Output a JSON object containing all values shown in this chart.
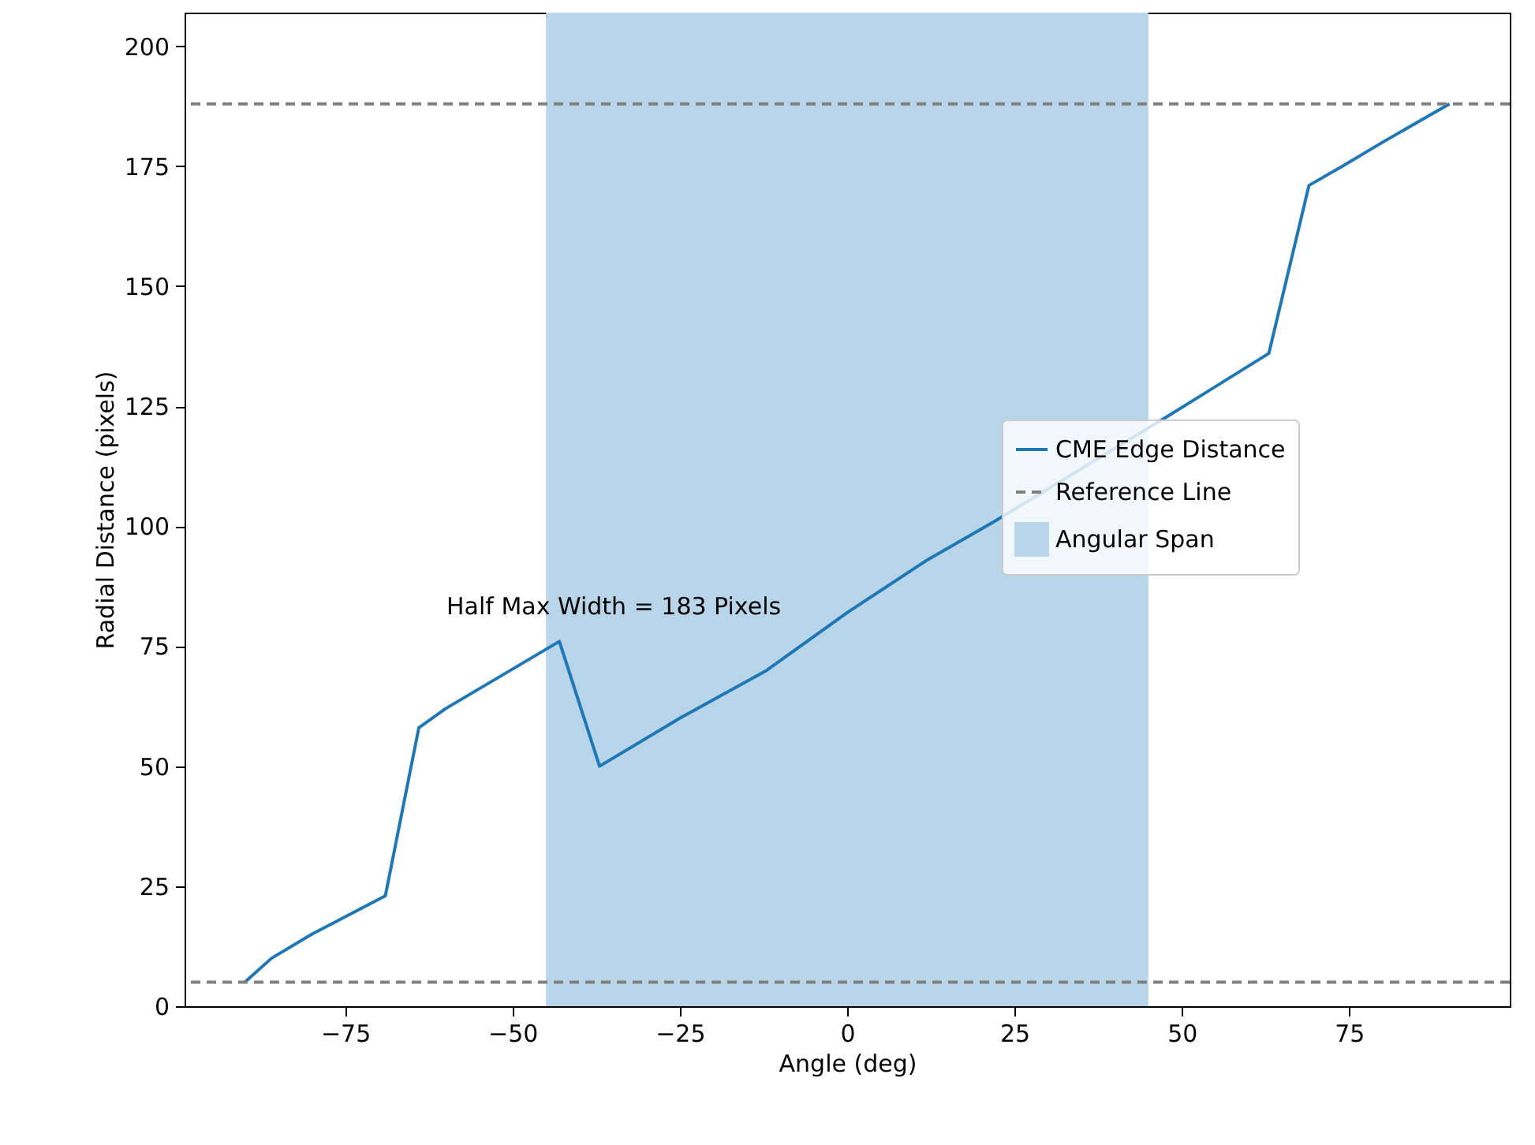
{
  "chart_data": {
    "type": "line",
    "xlabel": "Angle (deg)",
    "ylabel": "Radial Distance (pixels)",
    "x": [
      -90,
      -86,
      -80,
      -69,
      -64,
      -60,
      -43,
      -37,
      -25,
      -12,
      0,
      12,
      22,
      48,
      63,
      69,
      74,
      80,
      90
    ],
    "series": [
      {
        "name": "CME Edge Distance",
        "color": "#1f77b4",
        "values": [
          5,
          10,
          15,
          23,
          58,
          62,
          76,
          50,
          60,
          70,
          82,
          93,
          101,
          123,
          136,
          171,
          175,
          180,
          188
        ]
      }
    ],
    "xlim": [
      -99,
      99
    ],
    "xticks": [
      -75,
      -50,
      -25,
      0,
      25,
      50,
      75
    ],
    "ylim": [
      0,
      207
    ],
    "yticks": [
      0,
      25,
      50,
      75,
      100,
      125,
      150,
      175,
      200
    ],
    "ref_lines": [
      {
        "axis": "y",
        "value": 5,
        "label": "Reference Line",
        "color": "#808080",
        "line_style": "dashed"
      },
      {
        "axis": "y",
        "value": 188,
        "color": "#808080",
        "line_style": "dashed"
      }
    ],
    "bands": [
      {
        "axis": "x",
        "from": -45,
        "to": 45,
        "label": "Angular Span",
        "color": "#b9d5e9"
      }
    ],
    "annotations": [
      "Half Max Width = 183 Pixels"
    ],
    "grid": false,
    "legend": "right"
  }
}
